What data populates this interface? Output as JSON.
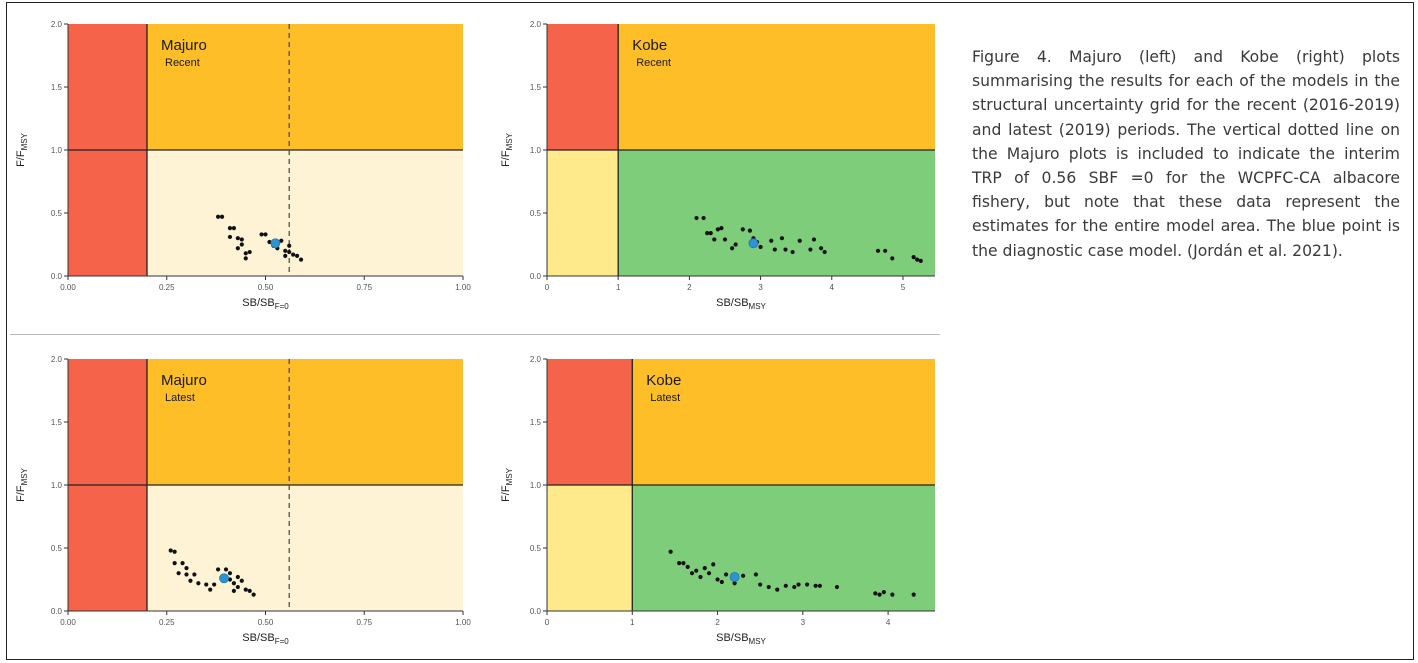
{
  "caption": "Figure 4.  Majuro (left) and Kobe (right) plots summarising the results for each of the models in the structural uncertainty grid for the recent (2016-2019) and latest (2019) periods. The vertical dotted line on the Majuro plots is included to indicate the interim TRP of 0.56 SBF =0 for the WCPFC-CA albacore fishery, but note that these data represent the estimates for the entire model area. The blue point is the diagnostic case model. (Jordán et al. 2021).",
  "colors": {
    "red": "#f4634a",
    "orange": "#fdbe27",
    "cream": "#fff3d6",
    "green": "#7dcd7b",
    "yellow": "#feea8b",
    "point": "#111111",
    "diagnostic": "#2e93d1"
  },
  "chart_data": [
    {
      "type": "scatter",
      "plot_kind": "majuro",
      "title": "Majuro",
      "subtitle": "Recent",
      "xlabel_main": "SB/SB",
      "xlabel_sub": "F=0",
      "ylabel_main": "F/F",
      "ylabel_sub": "MSY",
      "xlim": [
        0,
        1
      ],
      "ylim": [
        0,
        2
      ],
      "xticks": [
        0,
        0.25,
        0.5,
        0.75,
        1
      ],
      "xtick_labels": [
        "0.00",
        "0.25",
        "0.50",
        "0.75",
        "1.00"
      ],
      "yticks": [
        0,
        0.5,
        1,
        1.5,
        2
      ],
      "ytick_labels": [
        "0.0",
        "0.5",
        "1.0",
        "1.5",
        "2.0"
      ],
      "zones": {
        "x_limit": 0.2,
        "y_limit": 1
      },
      "trp_line": 0.56,
      "points": [
        [
          0.38,
          0.47
        ],
        [
          0.39,
          0.47
        ],
        [
          0.41,
          0.38
        ],
        [
          0.42,
          0.38
        ],
        [
          0.41,
          0.31
        ],
        [
          0.43,
          0.3
        ],
        [
          0.44,
          0.29
        ],
        [
          0.43,
          0.22
        ],
        [
          0.44,
          0.25
        ],
        [
          0.45,
          0.18
        ],
        [
          0.46,
          0.19
        ],
        [
          0.45,
          0.14
        ],
        [
          0.49,
          0.33
        ],
        [
          0.5,
          0.33
        ],
        [
          0.51,
          0.27
        ],
        [
          0.52,
          0.24
        ],
        [
          0.53,
          0.22
        ],
        [
          0.54,
          0.28
        ],
        [
          0.55,
          0.2
        ],
        [
          0.56,
          0.19
        ],
        [
          0.56,
          0.24
        ],
        [
          0.57,
          0.17
        ],
        [
          0.58,
          0.16
        ],
        [
          0.59,
          0.13
        ],
        [
          0.55,
          0.16
        ]
      ],
      "diagnostic": [
        0.525,
        0.26
      ]
    },
    {
      "type": "scatter",
      "plot_kind": "kobe",
      "title": "Kobe",
      "subtitle": "Recent",
      "xlabel_main": "SB/SB",
      "xlabel_sub": "MSY",
      "ylabel_main": "F/F",
      "ylabel_sub": "MSY",
      "xlim": [
        0,
        5.45
      ],
      "ylim": [
        0,
        2
      ],
      "xticks": [
        0,
        1,
        2,
        3,
        4,
        5
      ],
      "xtick_labels": [
        "0",
        "1",
        "2",
        "3",
        "4",
        "5"
      ],
      "yticks": [
        0,
        0.5,
        1,
        1.5,
        2
      ],
      "ytick_labels": [
        "0.0",
        "0.5",
        "1.0",
        "1.5",
        "2.0"
      ],
      "zones": {
        "x_limit": 1,
        "y_limit": 1
      },
      "points": [
        [
          2.1,
          0.46
        ],
        [
          2.2,
          0.46
        ],
        [
          2.25,
          0.34
        ],
        [
          2.3,
          0.34
        ],
        [
          2.35,
          0.29
        ],
        [
          2.4,
          0.37
        ],
        [
          2.45,
          0.38
        ],
        [
          2.5,
          0.29
        ],
        [
          2.6,
          0.22
        ],
        [
          2.65,
          0.25
        ],
        [
          2.75,
          0.37
        ],
        [
          2.85,
          0.36
        ],
        [
          2.9,
          0.3
        ],
        [
          2.95,
          0.27
        ],
        [
          3.0,
          0.23
        ],
        [
          3.15,
          0.28
        ],
        [
          3.2,
          0.21
        ],
        [
          3.3,
          0.3
        ],
        [
          3.35,
          0.21
        ],
        [
          3.45,
          0.19
        ],
        [
          3.55,
          0.28
        ],
        [
          3.7,
          0.21
        ],
        [
          3.75,
          0.29
        ],
        [
          3.85,
          0.22
        ],
        [
          3.9,
          0.19
        ],
        [
          4.65,
          0.2
        ],
        [
          4.75,
          0.2
        ],
        [
          4.85,
          0.14
        ],
        [
          5.15,
          0.15
        ],
        [
          5.2,
          0.13
        ],
        [
          5.25,
          0.12
        ]
      ],
      "diagnostic": [
        2.9,
        0.26
      ]
    },
    {
      "type": "scatter",
      "plot_kind": "majuro",
      "title": "Majuro",
      "subtitle": "Latest",
      "xlabel_main": "SB/SB",
      "xlabel_sub": "F=0",
      "ylabel_main": "F/F",
      "ylabel_sub": "MSY",
      "xlim": [
        0,
        1
      ],
      "ylim": [
        0,
        2
      ],
      "xticks": [
        0,
        0.25,
        0.5,
        0.75,
        1
      ],
      "xtick_labels": [
        "0.00",
        "0.25",
        "0.50",
        "0.75",
        "1.00"
      ],
      "yticks": [
        0,
        0.5,
        1,
        1.5,
        2
      ],
      "ytick_labels": [
        "0.0",
        "0.5",
        "1.0",
        "1.5",
        "2.0"
      ],
      "zones": {
        "x_limit": 0.2,
        "y_limit": 1
      },
      "trp_line": 0.56,
      "points": [
        [
          0.26,
          0.48
        ],
        [
          0.27,
          0.47
        ],
        [
          0.27,
          0.38
        ],
        [
          0.29,
          0.38
        ],
        [
          0.28,
          0.3
        ],
        [
          0.3,
          0.34
        ],
        [
          0.3,
          0.29
        ],
        [
          0.31,
          0.24
        ],
        [
          0.32,
          0.29
        ],
        [
          0.33,
          0.22
        ],
        [
          0.35,
          0.21
        ],
        [
          0.36,
          0.17
        ],
        [
          0.37,
          0.21
        ],
        [
          0.38,
          0.33
        ],
        [
          0.4,
          0.33
        ],
        [
          0.41,
          0.3
        ],
        [
          0.41,
          0.25
        ],
        [
          0.42,
          0.22
        ],
        [
          0.43,
          0.27
        ],
        [
          0.43,
          0.19
        ],
        [
          0.44,
          0.24
        ],
        [
          0.45,
          0.17
        ],
        [
          0.46,
          0.16
        ],
        [
          0.47,
          0.13
        ],
        [
          0.42,
          0.16
        ]
      ],
      "diagnostic": [
        0.395,
        0.26
      ]
    },
    {
      "type": "scatter",
      "plot_kind": "kobe",
      "title": "Kobe",
      "subtitle": "Latest",
      "xlabel_main": "SB/SB",
      "xlabel_sub": "MSY",
      "ylabel_main": "F/F",
      "ylabel_sub": "MSY",
      "xlim": [
        0,
        4.55
      ],
      "ylim": [
        0,
        2
      ],
      "xticks": [
        0,
        1,
        2,
        3,
        4
      ],
      "xtick_labels": [
        "0",
        "1",
        "2",
        "3",
        "4"
      ],
      "yticks": [
        0,
        0.5,
        1,
        1.5,
        2
      ],
      "ytick_labels": [
        "0.0",
        "0.5",
        "1.0",
        "1.5",
        "2.0"
      ],
      "zones": {
        "x_limit": 1,
        "y_limit": 1
      },
      "points": [
        [
          1.45,
          0.47
        ],
        [
          1.55,
          0.38
        ],
        [
          1.6,
          0.38
        ],
        [
          1.65,
          0.35
        ],
        [
          1.7,
          0.3
        ],
        [
          1.75,
          0.32
        ],
        [
          1.8,
          0.27
        ],
        [
          1.85,
          0.34
        ],
        [
          1.9,
          0.3
        ],
        [
          1.95,
          0.37
        ],
        [
          2.0,
          0.25
        ],
        [
          2.05,
          0.23
        ],
        [
          2.1,
          0.29
        ],
        [
          2.2,
          0.22
        ],
        [
          2.3,
          0.28
        ],
        [
          2.45,
          0.29
        ],
        [
          2.5,
          0.21
        ],
        [
          2.6,
          0.19
        ],
        [
          2.7,
          0.17
        ],
        [
          2.8,
          0.2
        ],
        [
          2.9,
          0.19
        ],
        [
          2.95,
          0.21
        ],
        [
          3.05,
          0.21
        ],
        [
          3.15,
          0.2
        ],
        [
          3.2,
          0.2
        ],
        [
          3.4,
          0.19
        ],
        [
          3.85,
          0.14
        ],
        [
          3.9,
          0.13
        ],
        [
          3.95,
          0.15
        ],
        [
          4.05,
          0.13
        ],
        [
          4.3,
          0.13
        ]
      ],
      "diagnostic": [
        2.2,
        0.27
      ]
    }
  ]
}
